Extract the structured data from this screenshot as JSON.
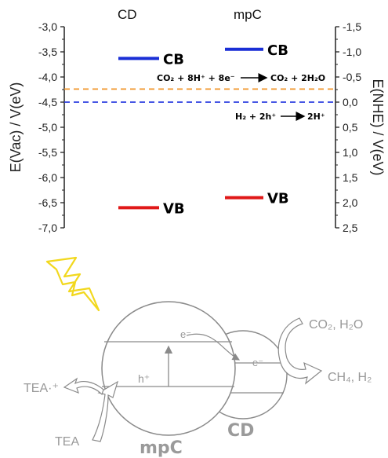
{
  "energy_diagram": {
    "column_headers": {
      "left": "CD",
      "right": "mpC"
    },
    "left_axis": {
      "title": "E(Vac) / V(eV)",
      "ticks": [
        "-3,0",
        "-3,5",
        "-4,0",
        "-4,5",
        "-5,0",
        "-5,5",
        "-6,0",
        "-6,5",
        "-7,0"
      ]
    },
    "right_axis": {
      "title": "E(NHE) / V(eV)",
      "ticks": [
        "-1,5",
        "-1,0",
        "-0,5",
        "0,0",
        "0,5",
        "1,0",
        "1,5",
        "2,0",
        "2,5"
      ]
    },
    "levels": [
      {
        "material": "CD",
        "band": "CB",
        "value_vac": -3.63,
        "color": "#1a2fd6"
      },
      {
        "material": "CD",
        "band": "VB",
        "value_vac": -6.6,
        "color": "#e01818"
      },
      {
        "material": "mpC",
        "band": "CB",
        "value_vac": -3.45,
        "color": "#1a2fd6"
      },
      {
        "material": "mpC",
        "band": "VB",
        "value_vac": -6.4,
        "color": "#e01818"
      }
    ],
    "band_labels": {
      "cb": "CB",
      "vb": "VB"
    },
    "redox_lines": [
      {
        "value_vac": -4.24,
        "color": "#f0952a"
      },
      {
        "value_vac": -4.5,
        "color": "#2d3fe0"
      }
    ],
    "equations": {
      "co2_reduction": {
        "left": "CO₂ + 8H⁺ + 8e⁻",
        "right": "CO₂ + 2H₂O"
      },
      "h2_evolution": {
        "left": "H₂ + 2h⁺",
        "right": "2H⁺"
      }
    }
  },
  "scheme": {
    "light_icon": "lightning-bolt-icon",
    "light_color": "#f2d81e",
    "electron": "e⁻",
    "electron_transferred": "e⁻",
    "hole": "h⁺",
    "tea_oxidized": "TEA·⁺",
    "tea": "TEA",
    "reactants": "CO₂, H₂O",
    "products": "CH₄, H₂",
    "large_particle": "mpC",
    "small_particle": "CD"
  }
}
